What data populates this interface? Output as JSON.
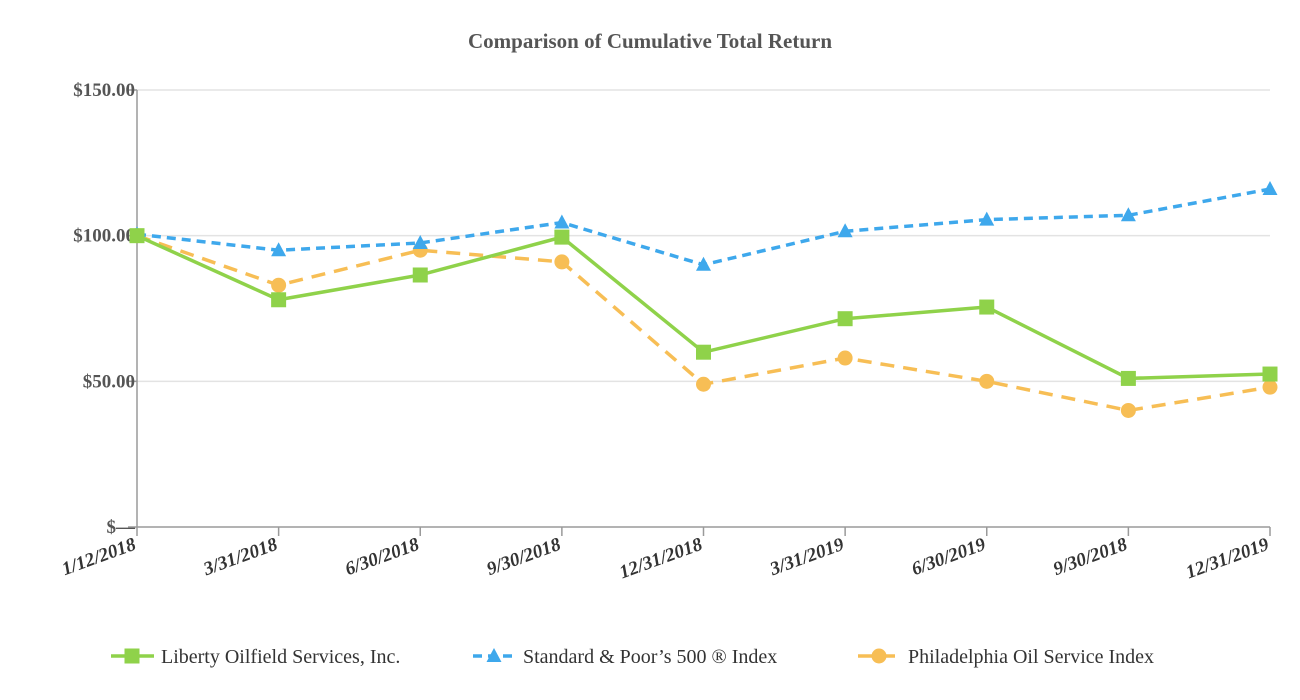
{
  "chart_data": {
    "type": "line",
    "title": "Comparison of Cumulative Total Return",
    "xlabel": "",
    "ylabel": "",
    "categories": [
      "1/12/2018",
      "3/31/2018",
      "6/30/2018",
      "9/30/2018",
      "12/31/2018",
      "3/31/2019",
      "6/30/2019",
      "9/30/2018",
      "12/31/2019"
    ],
    "ylim": [
      0,
      150
    ],
    "yticks": [
      {
        "value": 0,
        "label": "$—"
      },
      {
        "value": 50,
        "label": "$50.00"
      },
      {
        "value": 100,
        "label": "$100.00"
      },
      {
        "value": 150,
        "label": "$150.00"
      }
    ],
    "grid": true,
    "legend_position": "bottom",
    "series": [
      {
        "name": "Liberty Oilfield Services, Inc.",
        "color": "#8fd24a",
        "marker": "square",
        "dashed": false,
        "values": [
          100,
          78,
          86.5,
          99.5,
          60,
          71.5,
          75.5,
          51,
          52.5
        ]
      },
      {
        "name": "Standard & Poor’s 500 ® Index",
        "color": "#3ea8ec",
        "marker": "triangle",
        "dashed": true,
        "values": [
          100.5,
          95,
          97.5,
          104.5,
          90,
          101.5,
          105.5,
          107,
          116
        ]
      },
      {
        "name": "Philadelphia Oil Service Index",
        "color": "#f7be55",
        "marker": "circle",
        "dashed": true,
        "values": [
          100,
          83,
          95,
          91,
          49,
          58,
          50,
          40,
          48
        ]
      }
    ]
  }
}
